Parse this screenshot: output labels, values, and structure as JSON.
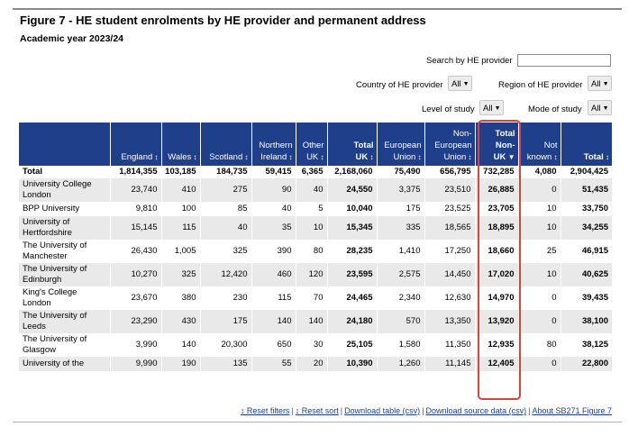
{
  "title": "Figure 7 - HE student enrolments by HE provider and permanent address",
  "subtitle": "Academic year 2023/24",
  "filters": {
    "search_label": "Search by HE provider",
    "search_value": "",
    "country_label": "Country of HE provider",
    "country_value": "All",
    "region_label": "Region of HE provider",
    "region_value": "All",
    "level_label": "Level of study",
    "level_value": "All",
    "mode_label": "Mode of study",
    "mode_value": "All"
  },
  "table": {
    "columns": [
      {
        "lines": [
          ""
        ],
        "sort": false,
        "bold": false
      },
      {
        "lines": [
          "England"
        ],
        "sort": true,
        "bold": false
      },
      {
        "lines": [
          "Wales"
        ],
        "sort": true,
        "bold": false
      },
      {
        "lines": [
          "Scotland"
        ],
        "sort": true,
        "bold": false
      },
      {
        "lines": [
          "Northern",
          "Ireland"
        ],
        "sort": true,
        "bold": false
      },
      {
        "lines": [
          "Other",
          "UK"
        ],
        "sort": true,
        "bold": false
      },
      {
        "lines": [
          "Total",
          "UK"
        ],
        "sort": true,
        "bold": true
      },
      {
        "lines": [
          "European",
          "Union"
        ],
        "sort": true,
        "bold": false
      },
      {
        "lines": [
          "Non-",
          "European",
          "Union"
        ],
        "sort": true,
        "bold": false
      },
      {
        "lines": [
          "Total",
          "Non-",
          "UK"
        ],
        "sort": "desc",
        "bold": true
      },
      {
        "lines": [
          "Not",
          "known"
        ],
        "sort": true,
        "bold": false
      },
      {
        "lines": [
          "Total"
        ],
        "sort": true,
        "bold": true
      }
    ],
    "total_row": [
      "Total",
      "1,814,355",
      "103,185",
      "184,735",
      "59,415",
      "6,365",
      "2,168,060",
      "75,490",
      "656,795",
      "732,285",
      "4,080",
      "2,904,425"
    ],
    "rows": [
      [
        "University College London",
        "23,740",
        "410",
        "275",
        "90",
        "40",
        "24,550",
        "3,375",
        "23,510",
        "26,885",
        "0",
        "51,435"
      ],
      [
        "BPP University",
        "9,810",
        "100",
        "85",
        "40",
        "5",
        "10,040",
        "175",
        "23,525",
        "23,705",
        "10",
        "33,750"
      ],
      [
        "University of Hertfordshire",
        "15,145",
        "115",
        "40",
        "35",
        "10",
        "15,345",
        "335",
        "18,565",
        "18,895",
        "10",
        "34,255"
      ],
      [
        "The University of Manchester",
        "26,430",
        "1,005",
        "325",
        "390",
        "80",
        "28,235",
        "1,410",
        "17,250",
        "18,660",
        "25",
        "46,915"
      ],
      [
        "The University of Edinburgh",
        "10,270",
        "325",
        "12,420",
        "460",
        "120",
        "23,595",
        "2,575",
        "14,450",
        "17,020",
        "10",
        "40,625"
      ],
      [
        "King's College London",
        "23,670",
        "380",
        "230",
        "115",
        "70",
        "24,465",
        "2,340",
        "12,630",
        "14,970",
        "0",
        "39,435"
      ],
      [
        "The University of Leeds",
        "23,290",
        "430",
        "175",
        "140",
        "140",
        "24,180",
        "570",
        "13,350",
        "13,920",
        "0",
        "38,100"
      ],
      [
        "The University of Glasgow",
        "3,990",
        "140",
        "20,300",
        "650",
        "30",
        "25,105",
        "1,580",
        "11,350",
        "12,935",
        "80",
        "38,125"
      ],
      [
        "University of the",
        "9,990",
        "190",
        "135",
        "55",
        "20",
        "10,390",
        "1,260",
        "11,145",
        "12,405",
        "0",
        "22,800"
      ]
    ]
  },
  "footer_links": [
    "↕ Reset filters",
    "↕ Reset sort",
    "Download table (csv)",
    "Download source data (csv)",
    "About SB271 Figure 7"
  ],
  "colors": {
    "header_bg": "#1f3f8a",
    "highlight": "#d9453b",
    "row_stripe": "#e9e9e9"
  }
}
